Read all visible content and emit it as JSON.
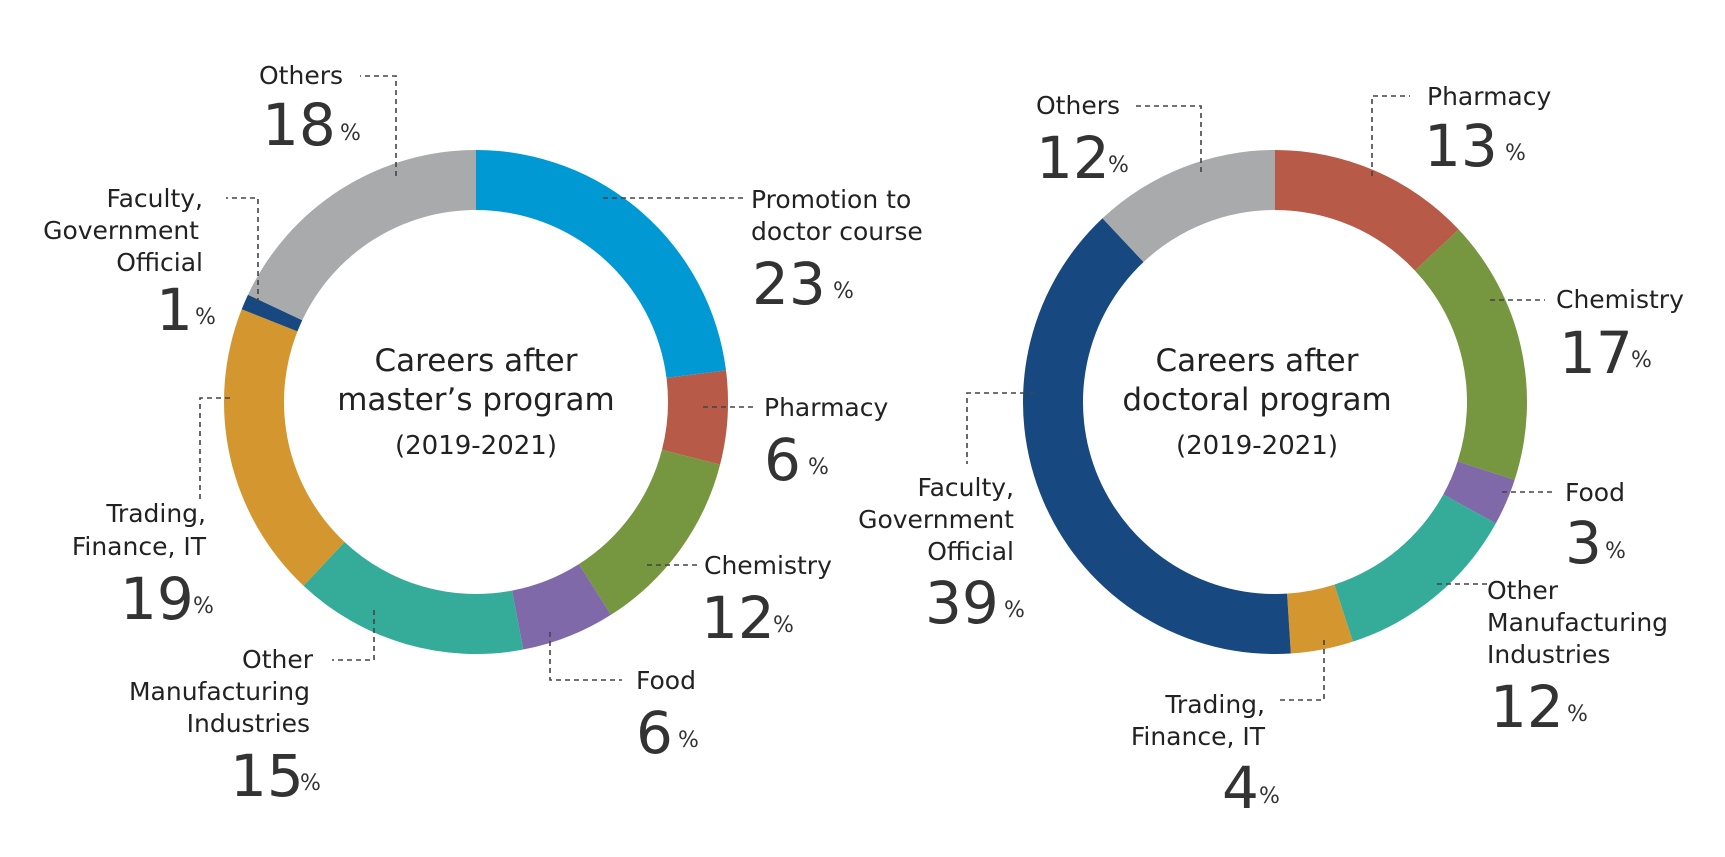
{
  "chart_data": [
    {
      "type": "pie",
      "title": "Careers after master’s program",
      "subtitle": "(2019-2021)",
      "unit": "%",
      "categories": [
        "Promotion to doctor course",
        "Pharmacy",
        "Chemistry",
        "Food",
        "Other Manufacturing Industries",
        "Trading, Finance, IT",
        "Faculty, Government Official",
        "Others"
      ],
      "values": [
        23,
        6,
        12,
        6,
        15,
        19,
        1,
        18
      ],
      "colors": [
        "#0099d4",
        "#b85a48",
        "#76963f",
        "#8069a8",
        "#35ab9a",
        "#d4962f",
        "#174880",
        "#a8aaab"
      ]
    },
    {
      "type": "pie",
      "title": "Careers after doctoral program",
      "subtitle": "(2019-2021)",
      "unit": "%",
      "categories": [
        "Pharmacy",
        "Chemistry",
        "Food",
        "Other Manufacturing Industries",
        "Trading, Finance, IT",
        "Faculty, Government Official",
        "Others"
      ],
      "values": [
        13,
        17,
        3,
        12,
        4,
        39,
        12
      ],
      "colors": [
        "#b85a48",
        "#76963f",
        "#8069a8",
        "#35ab9a",
        "#d4962f",
        "#174880",
        "#a8aaab"
      ]
    }
  ],
  "labels": {
    "c1": {
      "title_line1": "Careers after",
      "title_line2": "master’s program",
      "years": "(2019-2021)",
      "promotion_l1": "Promotion to",
      "promotion_l2": "doctor course",
      "promotion_val": "23",
      "pharmacy": "Pharmacy",
      "pharmacy_val": "6",
      "chemistry": "Chemistry",
      "chemistry_val": "12",
      "food": "Food",
      "food_val": "6",
      "other_l1": "Other",
      "other_l2": "Manufacturing",
      "other_l3": "Industries",
      "other_val": "15",
      "trading_l1": "Trading,",
      "trading_l2": "Finance, IT",
      "trading_val": "19",
      "faculty_l1": "Faculty,",
      "faculty_l2": "Government",
      "faculty_l3": "Official",
      "faculty_val": "1",
      "others": "Others",
      "others_val": "18"
    },
    "c2": {
      "title_line1": "Careers after",
      "title_line2": "doctoral program",
      "years": "(2019-2021)",
      "pharmacy": "Pharmacy",
      "pharmacy_val": "13",
      "chemistry": "Chemistry",
      "chemistry_val": "17",
      "food": "Food",
      "food_val": "3",
      "other_l1": "Other",
      "other_l2": "Manufacturing",
      "other_l3": "Industries",
      "other_val": "12",
      "trading_l1": "Trading,",
      "trading_l2": "Finance, IT",
      "trading_val": "4",
      "faculty_l1": "Faculty,",
      "faculty_l2": "Government",
      "faculty_l3": "Official",
      "faculty_val": "39",
      "others": "Others",
      "others_val": "12"
    },
    "pct": "%"
  }
}
